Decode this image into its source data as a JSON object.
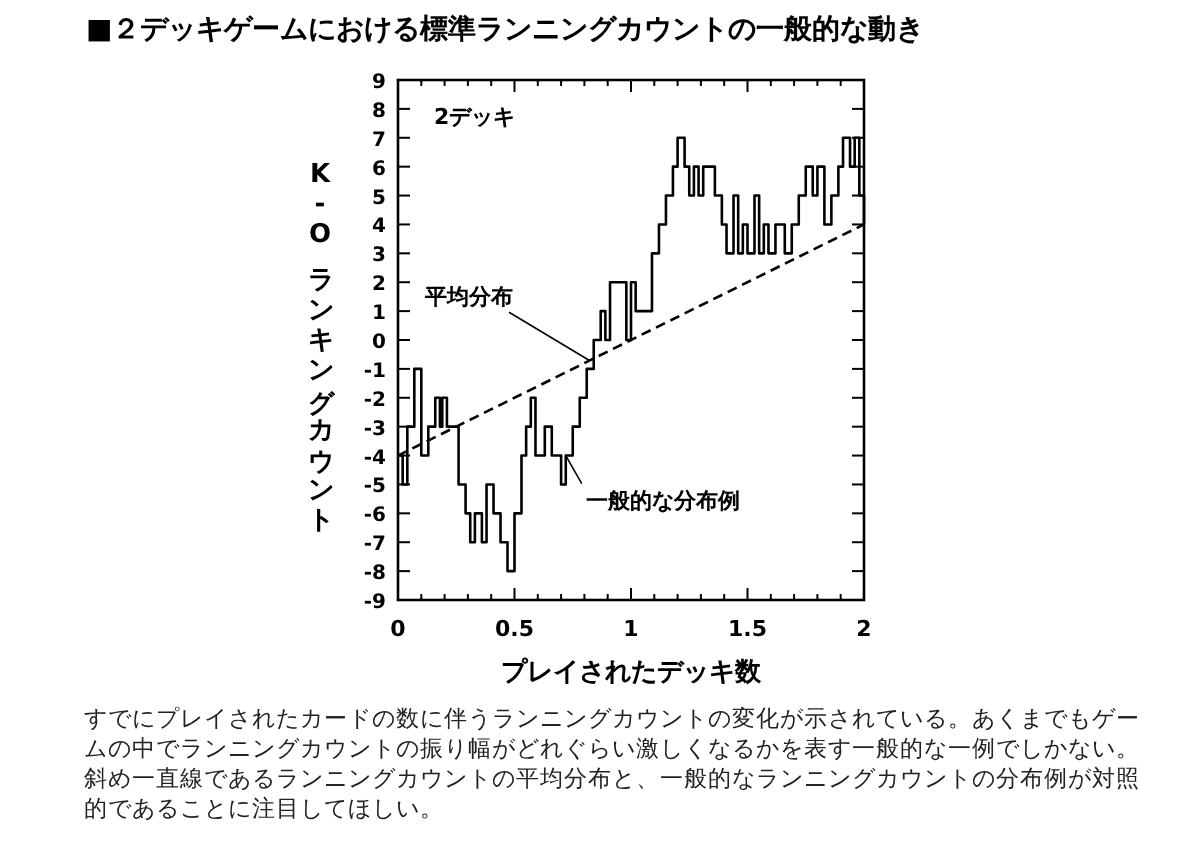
{
  "chart_data": {
    "type": "step",
    "title": "■２デッキゲームにおける標準ランニングカウントの一般的な動き",
    "xlabel": "プレイされたデッキ数",
    "ylabel": "K-Oランキングカウント",
    "series": [
      {
        "type": "step",
        "color": "#000000",
        "line_style": "solid",
        "x": [
          0,
          0.02,
          0.04,
          0.07,
          0.1,
          0.13,
          0.16,
          0.18,
          0.19,
          0.21,
          0.26,
          0.29,
          0.31,
          0.33,
          0.36,
          0.38,
          0.41,
          0.44,
          0.47,
          0.5,
          0.53,
          0.55,
          0.57,
          0.59,
          0.63,
          0.66,
          0.7,
          0.72,
          0.75,
          0.78,
          0.81,
          0.84,
          0.87,
          0.89,
          0.91,
          0.94,
          0.98,
          1.0,
          1.02,
          1.05,
          1.09,
          1.12,
          1.15,
          1.18,
          1.2,
          1.23,
          1.25,
          1.27,
          1.29,
          1.31,
          1.36,
          1.39,
          1.41,
          1.44,
          1.46,
          1.48,
          1.5,
          1.53,
          1.55,
          1.57,
          1.59,
          1.62,
          1.66,
          1.69,
          1.72,
          1.75,
          1.78,
          1.8,
          1.83,
          1.86,
          1.89,
          1.91,
          1.94,
          1.96,
          1.98,
          2.0
        ],
        "values": [
          -4,
          -5,
          -3,
          -1,
          -4,
          -3,
          -2,
          -3,
          -2,
          -3,
          -5,
          -6,
          -7,
          -6,
          -7,
          -5,
          -6,
          -7,
          -8,
          -6,
          -4,
          -3,
          -2,
          -4,
          -3,
          -4,
          -5,
          -4,
          -3,
          -2,
          -1,
          0,
          1,
          0,
          2,
          2,
          0,
          2,
          1,
          1,
          3,
          4,
          5,
          6,
          7,
          6,
          5,
          6,
          5,
          6,
          5,
          4,
          3,
          5,
          3,
          4,
          3,
          5,
          3,
          4,
          3,
          4,
          3,
          4,
          5,
          6,
          5,
          6,
          4,
          5,
          6,
          7,
          6,
          7,
          5,
          4
        ]
      },
      {
        "type": "line",
        "color": "#000000",
        "line_style": "dashed",
        "x": [
          0,
          2
        ],
        "values": [
          -4,
          4
        ]
      }
    ],
    "xlim": [
      0,
      2
    ],
    "ylim": [
      -9,
      9
    ],
    "xticks": [
      0,
      {
        "value": 0.1,
        "label": null
      },
      {
        "value": 0.2,
        "label": null
      },
      {
        "value": 0.3,
        "label": null
      },
      {
        "value": 0.4,
        "label": null
      },
      0.5,
      {
        "value": 0.6,
        "label": null
      },
      {
        "value": 0.7,
        "label": null
      },
      {
        "value": 0.8,
        "label": null
      },
      {
        "value": 0.9,
        "label": null
      },
      1,
      {
        "value": 1.1,
        "label": null
      },
      {
        "value": 1.2,
        "label": null
      },
      {
        "value": 1.3,
        "label": null
      },
      {
        "value": 1.4,
        "label": null
      },
      1.5,
      {
        "value": 1.6,
        "label": null
      },
      {
        "value": 1.7,
        "label": null
      },
      {
        "value": 1.8,
        "label": null
      },
      {
        "value": 1.9,
        "label": null
      },
      2
    ],
    "yticks": [
      -9,
      -8,
      -7,
      -6,
      -5,
      -4,
      -3,
      -2,
      -1,
      0,
      1,
      2,
      3,
      4,
      5,
      6,
      7,
      8,
      9
    ],
    "grid": false,
    "annotations": [
      "2デッキ",
      {
        "text": "平均分布",
        "x": 0.82,
        "y": -0.7
      },
      {
        "text": "一般的な分布例",
        "x": 0.72,
        "y": -4
      },
      "すでにプレイされたカードの数に伴うランニングカウントの変化が示されている。あくまでもゲームの中でランニングカウントの振り幅がどれぐらい激しくなるかを表す一般的な一例でしかない。斜め一直線であるランニングカウントの平均分布と、一般的なランニングカウントの分布例が対照的であることに注目してほしい。"
    ]
  }
}
